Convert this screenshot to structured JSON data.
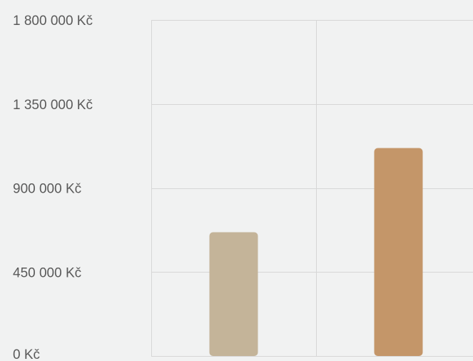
{
  "chart_data": {
    "type": "bar",
    "title": "",
    "xlabel": "",
    "ylabel": "",
    "categories": [
      "",
      ""
    ],
    "values": [
      663000,
      1114000
    ],
    "ylim": [
      0,
      1800000
    ],
    "yticks": [
      0,
      450000,
      900000,
      1350000,
      1800000
    ],
    "ytick_labels": [
      "0 Kč",
      "450 000 Kč",
      "900 000 Kč",
      "1 350 000 Kč",
      "1 800 000 Kč"
    ],
    "bar_colors": [
      "#c4b499",
      "#c49669"
    ],
    "grid": true,
    "legend": "none"
  },
  "colors": {
    "background": "#f1f2f2",
    "grid": "#d6d6d6",
    "label": "#5a5a5a"
  }
}
